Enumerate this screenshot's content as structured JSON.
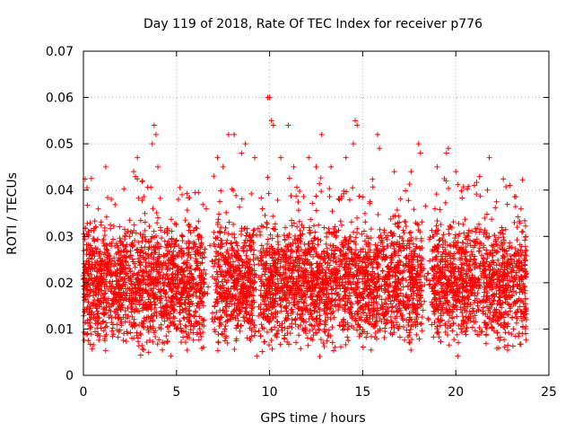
{
  "chart_data": {
    "type": "scatter",
    "title": "Day 119 of 2018, Rate Of TEC Index for receiver p776",
    "xlabel": "GPS time / hours",
    "ylabel": "ROTI / TECUs",
    "xlim": [
      0,
      25
    ],
    "ylim": [
      0,
      0.07
    ],
    "xticks": [
      0,
      5,
      10,
      15,
      20,
      25
    ],
    "yticks": [
      0,
      0.01,
      0.02,
      0.03,
      0.04,
      0.05,
      0.06,
      0.07
    ],
    "xtick_labels": [
      "0",
      "5",
      "10",
      "15",
      "20",
      "25"
    ],
    "ytick_labels": [
      "0",
      "0.01",
      "0.02",
      "0.03",
      "0.04",
      "0.05",
      "0.06",
      "0.07"
    ],
    "grid": true,
    "marker": "+",
    "marker_color": "#ff0000",
    "series": [
      {
        "name": "ROTI",
        "data_extent": {
          "x_min": 0.0,
          "x_max": 23.8,
          "y_min": 0.004,
          "y_max": 0.06
        },
        "data_gaps_hours": [
          [
            6.5,
            7.0
          ],
          [
            9.2,
            9.5
          ],
          [
            18.2,
            18.7
          ]
        ],
        "points": [
          [
            0.3,
            0.031
          ],
          [
            0.8,
            0.036
          ],
          [
            1.2,
            0.045
          ],
          [
            1.5,
            0.038
          ],
          [
            2.7,
            0.044
          ],
          [
            2.9,
            0.047
          ],
          [
            3.7,
            0.05
          ],
          [
            3.8,
            0.054
          ],
          [
            3.9,
            0.052
          ],
          [
            4.0,
            0.045
          ],
          [
            5.1,
            0.038
          ],
          [
            5.3,
            0.039
          ],
          [
            6.6,
            0.036
          ],
          [
            7.0,
            0.043
          ],
          [
            7.2,
            0.047
          ],
          [
            7.5,
            0.045
          ],
          [
            7.8,
            0.052
          ],
          [
            8.1,
            0.052
          ],
          [
            8.5,
            0.048
          ],
          [
            8.7,
            0.05
          ],
          [
            9.2,
            0.047
          ],
          [
            9.9,
            0.06
          ],
          [
            10.0,
            0.06
          ],
          [
            10.1,
            0.055
          ],
          [
            10.2,
            0.054
          ],
          [
            10.6,
            0.047
          ],
          [
            11.0,
            0.054
          ],
          [
            11.3,
            0.045
          ],
          [
            12.1,
            0.047
          ],
          [
            12.5,
            0.045
          ],
          [
            12.8,
            0.052
          ],
          [
            13.3,
            0.045
          ],
          [
            14.1,
            0.047
          ],
          [
            14.5,
            0.05
          ],
          [
            14.6,
            0.055
          ],
          [
            14.7,
            0.054
          ],
          [
            15.8,
            0.052
          ],
          [
            15.9,
            0.049
          ],
          [
            16.7,
            0.044
          ],
          [
            17.6,
            0.044
          ],
          [
            18.0,
            0.05
          ],
          [
            18.1,
            0.048
          ],
          [
            19.0,
            0.045
          ],
          [
            19.5,
            0.048
          ],
          [
            19.6,
            0.049
          ],
          [
            20.0,
            0.044
          ],
          [
            21.0,
            0.041
          ],
          [
            21.7,
            0.04
          ],
          [
            21.8,
            0.047
          ],
          [
            22.9,
            0.041
          ],
          [
            23.5,
            0.036
          ]
        ]
      }
    ]
  }
}
